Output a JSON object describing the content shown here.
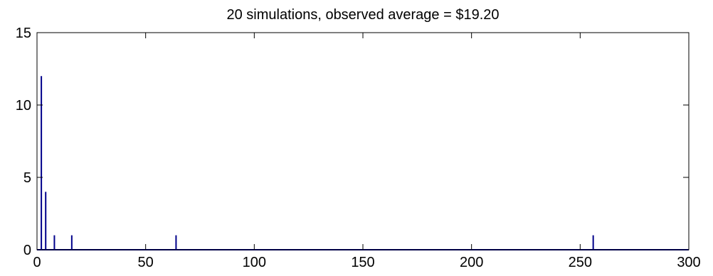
{
  "chart_data": {
    "type": "bar",
    "title": "20 simulations, observed average = $19.20",
    "xlabel": "",
    "ylabel": "",
    "xlim": [
      0,
      300
    ],
    "ylim": [
      0,
      15
    ],
    "xticks": [
      0,
      50,
      100,
      150,
      200,
      250,
      300
    ],
    "yticks": [
      0,
      5,
      10,
      15
    ],
    "grid": false,
    "x": [
      2,
      4,
      8,
      16,
      64,
      256
    ],
    "values": [
      12,
      4,
      1,
      1,
      1,
      1
    ],
    "colors": {
      "bars": "#00008b",
      "axes": "#000000",
      "background": "#ffffff"
    }
  }
}
